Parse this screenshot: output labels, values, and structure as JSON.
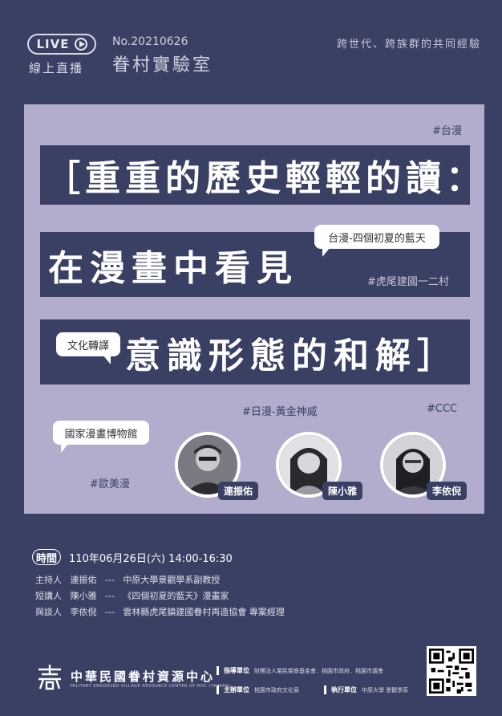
{
  "header": {
    "live_label": "LIVE",
    "live_sub": "線上直播",
    "issue_no": "No.20210626",
    "issue_title": "眷村實驗室",
    "tagline": "跨世代、跨族群的共同經驗"
  },
  "banner": {
    "line1": "［重重的歷史輕輕的讀：",
    "line2": "在漫畫中看見",
    "line3": "意識形態的和解］"
  },
  "tags": {
    "taiwan_comic": "#台漫",
    "huwei_village": "#虎尾建國一二村",
    "japan_comic": "#日漫-黃金神威",
    "ccc": "#CCC",
    "western_comic": "#歐美漫"
  },
  "bubbles": {
    "blue_sky": "台漫-四個初夏的藍天",
    "translation": "文化轉譯",
    "museum": "國家漫畫博物館"
  },
  "speakers": [
    {
      "name": "連振佑"
    },
    {
      "name": "陳小雅"
    },
    {
      "name": "李依倪"
    }
  ],
  "schedule": {
    "time_label": "時間",
    "time_value": "110年06月26日(六) 14:00-16:30",
    "rows": [
      {
        "role": "主持人",
        "name": "連振佑",
        "sep": "---",
        "desc": "中原大學景觀學系副教授"
      },
      {
        "role": "短講人",
        "name": "陳小雅",
        "sep": "---",
        "desc": "《四個初夏的藍天》漫畫家"
      },
      {
        "role": "與談人",
        "name": "李依倪",
        "sep": "---",
        "desc": "雲林縣虎尾鎮建國眷村再造協會 專案經理"
      }
    ]
  },
  "footer": {
    "org_cn": "中華民國眷村資源中心",
    "org_en": "MILITARY ENDORSED VILLAGE RESOURCE CENTER OF ROC (TAIWAN)",
    "guide_label": "指導單位",
    "guide_value": "財團法人榮民榮眷基金會．桃園市政府．桃園市議會",
    "host_label": "主辦單位",
    "host_value": "桃園市政府文化局",
    "exec_label": "執行單位",
    "exec_value": "中原大學 景觀學系"
  },
  "colors": {
    "navy": "#3a4064",
    "lavender": "#b2adcc",
    "white": "#ffffff"
  }
}
